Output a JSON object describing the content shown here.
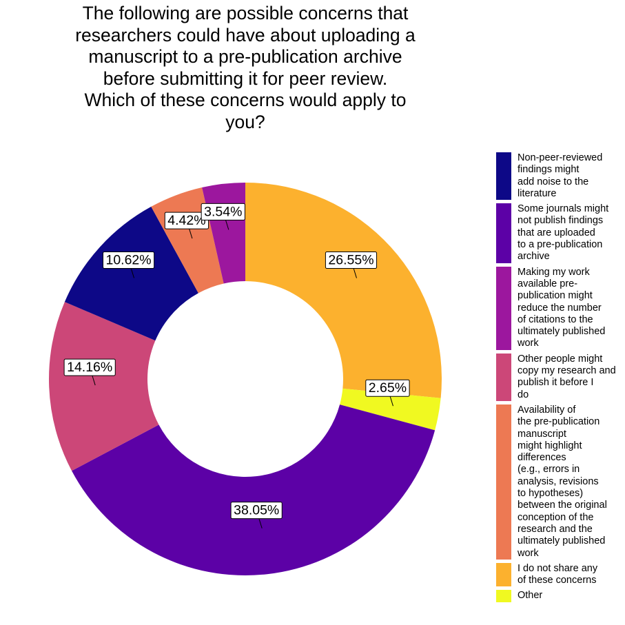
{
  "chart_data": {
    "type": "pie",
    "title_lines": [
      "The following are possible concerns that",
      "researchers could have about uploading a",
      "manuscript to a pre-publication archive",
      "before submitting it for peer review.",
      "Which of these concerns would apply to",
      "you?"
    ],
    "slices": [
      {
        "legend_lines": [
          "I do not share any",
          "of these concerns"
        ],
        "value": 26.55,
        "label": "26.55%",
        "color": "#fcb12e"
      },
      {
        "legend_lines": [
          "Other"
        ],
        "value": 2.65,
        "label": "2.65%",
        "color": "#f0f921"
      },
      {
        "legend_lines": [
          "Some journals might",
          "not publish findings",
          "that are uploaded",
          "to a pre-publication",
          "archive"
        ],
        "value": 38.05,
        "label": "38.05%",
        "color": "#5c01a6"
      },
      {
        "legend_lines": [
          "Other people might",
          "copy my research and",
          "publish it before I",
          "do"
        ],
        "value": 14.16,
        "label": "14.16%",
        "color": "#cc4778"
      },
      {
        "legend_lines": [
          "Non-peer-reviewed",
          "findings might",
          "add noise to the",
          "literature"
        ],
        "value": 10.62,
        "label": "10.62%",
        "color": "#0d0887"
      },
      {
        "legend_lines": [
          "Availability of",
          "the pre-publication",
          "manuscript",
          "might highlight",
          "differences",
          "(e.g., errors in",
          "analysis, revisions",
          "to hypotheses)",
          "between the original",
          "conception of the",
          "research and the",
          "ultimately published",
          "work"
        ],
        "value": 4.42,
        "label": "4.42%",
        "color": "#ed7953"
      },
      {
        "legend_lines": [
          "Making my work",
          "available pre-",
          "publication might",
          "reduce the number",
          "of citations to the",
          "ultimately published",
          "work"
        ],
        "value": 3.54,
        "label": "3.54%",
        "color": "#9c179e"
      }
    ],
    "legend_order": [
      4,
      2,
      6,
      3,
      5,
      0,
      1
    ],
    "legend_position": "right"
  }
}
